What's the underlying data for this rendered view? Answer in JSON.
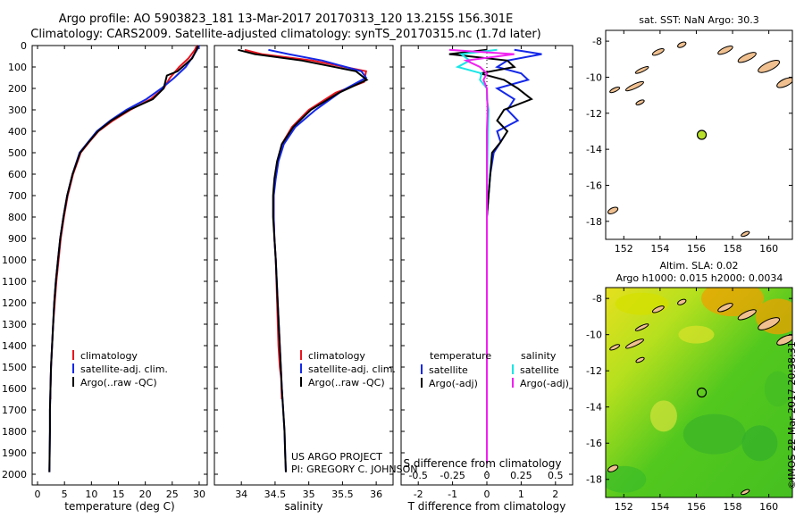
{
  "titles": {
    "line1": "Argo profile: AO 5903823_181 13-Mar-2017 20170313_120 13.215S 156.301E",
    "line2": "Climatology: CARS2009. Satellite-adjusted climatology: synTS_20170315.nc (1.7d later)"
  },
  "credits": {
    "project": "US ARGO PROJECT",
    "pi": "PI: GREGORY C. JOHNSON",
    "imos": "©IMOS 22-Mar-2017 20:38:31"
  },
  "colors": {
    "climatology": "#e8141e",
    "satellite": "#1428e8",
    "argo": "#000000",
    "sat_salinity": "#19e6e6",
    "argo_salinity": "#f020f0"
  },
  "chart_data": [
    {
      "type": "line",
      "xlabel": "temperature (deg C)",
      "ylabel": "",
      "xlim": [
        -1,
        31.5
      ],
      "ylim": [
        2050,
        0
      ],
      "xticks": [
        "0",
        "5",
        "10",
        "15",
        "20",
        "25",
        "30"
      ],
      "yticks": [
        "0",
        "100",
        "200",
        "300",
        "400",
        "500",
        "600",
        "700",
        "800",
        "900",
        "1000",
        "1100",
        "1200",
        "1300",
        "1400",
        "1500",
        "1600",
        "1700",
        "1800",
        "1900",
        "2000"
      ],
      "legend": [
        "climatology",
        "satellite-adj. clim.",
        "Argo(..raw -QC)"
      ],
      "series": [
        {
          "name": "climatology",
          "color": "#e8141e",
          "x": [
            29.6,
            29.2,
            28.0,
            26.3,
            24.6,
            23.4,
            21.0,
            17.2,
            14.0,
            11.3,
            9.6,
            8.0,
            6.6,
            5.6,
            4.9,
            4.3,
            3.9,
            3.5,
            3.2,
            2.9,
            2.7,
            2.5,
            2.4,
            2.4
          ],
          "y": [
            0,
            20,
            60,
            100,
            150,
            200,
            250,
            300,
            350,
            400,
            450,
            500,
            600,
            700,
            800,
            900,
            1000,
            1100,
            1200,
            1300,
            1400,
            1500,
            1600,
            1650
          ]
        },
        {
          "name": "satellite-adj. clim.",
          "color": "#1428e8",
          "x": [
            30.0,
            29.6,
            28.6,
            27.5,
            25.4,
            23.0,
            20.2,
            16.5,
            13.5,
            11.0,
            9.4,
            7.8,
            6.5,
            5.5,
            4.8,
            4.2,
            3.8,
            3.4,
            3.1,
            2.9,
            2.7,
            2.5,
            2.4,
            2.3,
            2.3,
            2.2
          ],
          "y": [
            0,
            20,
            60,
            100,
            150,
            200,
            250,
            300,
            350,
            400,
            450,
            500,
            600,
            700,
            800,
            900,
            1000,
            1100,
            1200,
            1300,
            1400,
            1500,
            1600,
            1700,
            1800,
            1990
          ]
        },
        {
          "name": "Argo(..raw -QC)",
          "color": "#000000",
          "x": [
            29.8,
            29.5,
            28.7,
            26.0,
            24.0,
            23.4,
            21.4,
            17.0,
            13.7,
            11.2,
            9.5,
            7.9,
            6.5,
            5.5,
            4.8,
            4.2,
            3.8,
            3.4,
            3.1,
            2.9,
            2.7,
            2.5,
            2.4,
            2.3,
            2.3,
            2.2
          ],
          "y": [
            0,
            20,
            60,
            120,
            140,
            200,
            250,
            300,
            350,
            400,
            450,
            500,
            600,
            700,
            800,
            900,
            1000,
            1100,
            1200,
            1300,
            1400,
            1500,
            1600,
            1700,
            1800,
            1990
          ]
        }
      ]
    },
    {
      "type": "line",
      "xlabel": "salinity",
      "xlim": [
        33.6,
        36.25
      ],
      "ylim": [
        2050,
        0
      ],
      "xticks": [
        "34",
        "34.5",
        "35",
        "35.5",
        "36"
      ],
      "legend": [
        "climatology",
        "satellite-adj. clim.",
        "Argo(..raw -QC)"
      ],
      "series": [
        {
          "name": "climatology",
          "color": "#e8141e",
          "x": [
            34.05,
            34.3,
            35.05,
            35.85,
            35.82,
            35.4,
            35.0,
            34.75,
            34.6,
            34.54,
            34.5,
            34.48,
            34.48,
            34.49,
            34.51,
            34.53,
            34.55,
            34.57,
            34.59,
            34.6
          ],
          "y": [
            20,
            40,
            70,
            120,
            170,
            220,
            300,
            380,
            460,
            540,
            620,
            700,
            800,
            900,
            1000,
            1200,
            1400,
            1500,
            1550,
            1650
          ]
        },
        {
          "name": "satellite-adj. clim.",
          "color": "#1428e8",
          "x": [
            34.4,
            34.7,
            35.2,
            35.78,
            35.85,
            35.5,
            35.1,
            34.8,
            34.63,
            34.55,
            34.51,
            34.48,
            34.48,
            34.49,
            34.51,
            34.54,
            34.57,
            34.6,
            34.62,
            34.64,
            34.65,
            34.66
          ],
          "y": [
            20,
            40,
            70,
            120,
            150,
            210,
            300,
            380,
            460,
            540,
            620,
            700,
            800,
            900,
            1000,
            1200,
            1400,
            1600,
            1700,
            1800,
            1900,
            1990
          ]
        },
        {
          "name": "Argo(..raw -QC)",
          "color": "#000000",
          "x": [
            33.95,
            34.2,
            34.9,
            35.7,
            35.86,
            35.45,
            35.03,
            34.77,
            34.6,
            34.53,
            34.49,
            34.47,
            34.47,
            34.49,
            34.51,
            34.54,
            34.57,
            34.6,
            34.62,
            34.64,
            34.65,
            34.66
          ],
          "y": [
            20,
            40,
            70,
            120,
            160,
            220,
            300,
            380,
            460,
            540,
            620,
            700,
            800,
            900,
            1000,
            1200,
            1400,
            1600,
            1700,
            1800,
            1900,
            1990
          ]
        }
      ]
    },
    {
      "type": "line",
      "xlabel": "T difference from climatology",
      "xlabel_top": "S difference from climatology",
      "xlim": [
        -2.5,
        2.5
      ],
      "ylim": [
        2050,
        0
      ],
      "xticks": [
        "-2",
        "-1",
        "0",
        "1",
        "2"
      ],
      "xticks_top": [
        "-0.5",
        "-0.25",
        "0",
        "0.25",
        "0.5"
      ],
      "legend_temperature_title": "temperature",
      "legend_salinity_title": "salinity",
      "legend": [
        "satellite",
        "Argo(-adj)",
        "satellite",
        "Argo(-adj)"
      ],
      "series": [
        {
          "name": "satellite",
          "color": "#1428e8",
          "x": [
            0.8,
            1.6,
            0.6,
            0.3,
            1.0,
            1.2,
            0.3,
            0.8,
            0.6,
            0.9,
            0.3,
            0.4,
            0.2,
            0.1,
            0.05,
            0.0,
            0.0,
            0.0,
            0.0,
            0.0,
            0.0
          ],
          "y": [
            20,
            40,
            70,
            100,
            130,
            160,
            200,
            250,
            300,
            350,
            400,
            450,
            500,
            600,
            700,
            800,
            1000,
            1200,
            1500,
            1800,
            1950
          ]
        },
        {
          "name": "Argo(-adj)",
          "color": "#000000",
          "x": [
            0.0,
            -1.1,
            0.6,
            0.8,
            -0.2,
            0.5,
            0.9,
            1.3,
            0.5,
            0.3,
            0.6,
            0.4,
            0.15,
            0.1,
            0.05,
            0.0,
            0.0,
            0.0,
            0.0,
            0.0,
            0.0
          ],
          "y": [
            20,
            40,
            70,
            100,
            130,
            160,
            200,
            250,
            300,
            350,
            400,
            450,
            500,
            600,
            700,
            800,
            1000,
            1200,
            1500,
            1800,
            1950
          ]
        },
        {
          "name": "satellite",
          "color": "#19e6e6",
          "x": [
            0.3,
            -0.75,
            -0.5,
            -0.85,
            -0.15,
            -0.2,
            0.0,
            0.0,
            0.05,
            0.03,
            0.02,
            0.01,
            0.0,
            0.0,
            0.0,
            0.0,
            0.0,
            0.0,
            0.0
          ],
          "y": [
            20,
            40,
            70,
            100,
            130,
            160,
            200,
            250,
            300,
            400,
            500,
            600,
            700,
            800,
            1000,
            1200,
            1500,
            1800,
            1950
          ]
        },
        {
          "name": "Argo(-adj)",
          "color": "#f020f0",
          "x": [
            -1.1,
            0.8,
            -0.6,
            -0.2,
            0.0,
            -0.1,
            0.0,
            0.02,
            0.0,
            0.0,
            0.0,
            0.0,
            0.0,
            0.0,
            0.0
          ],
          "y": [
            20,
            40,
            70,
            100,
            130,
            160,
            200,
            300,
            400,
            600,
            800,
            1000,
            1500,
            1800,
            1950
          ]
        }
      ]
    }
  ],
  "maps": {
    "sst": {
      "title": "sat. SST: NaN Argo: 30.3",
      "xticks": [
        "152",
        "154",
        "156",
        "158",
        "160"
      ],
      "yticks": [
        "-8",
        "-10",
        "-12",
        "-14",
        "-16",
        "-18"
      ],
      "lon_range": [
        151,
        161.3
      ],
      "lat_range": [
        -19,
        -7.4
      ],
      "argo_lon": 156.3,
      "argo_lat": -13.2,
      "marker_color": "#b8e02a"
    },
    "sla": {
      "title1": "Altim. SLA: 0.02",
      "title2": "Argo h1000: 0.015 h2000: 0.0034",
      "xticks": [
        "152",
        "154",
        "156",
        "158",
        "160"
      ],
      "yticks": [
        "-8",
        "-10",
        "-12",
        "-14",
        "-16",
        "-18"
      ],
      "lon_range": [
        151,
        161.3
      ],
      "lat_range": [
        -19,
        -7.4
      ],
      "argo_lon": 156.3,
      "argo_lat": -13.2
    }
  }
}
